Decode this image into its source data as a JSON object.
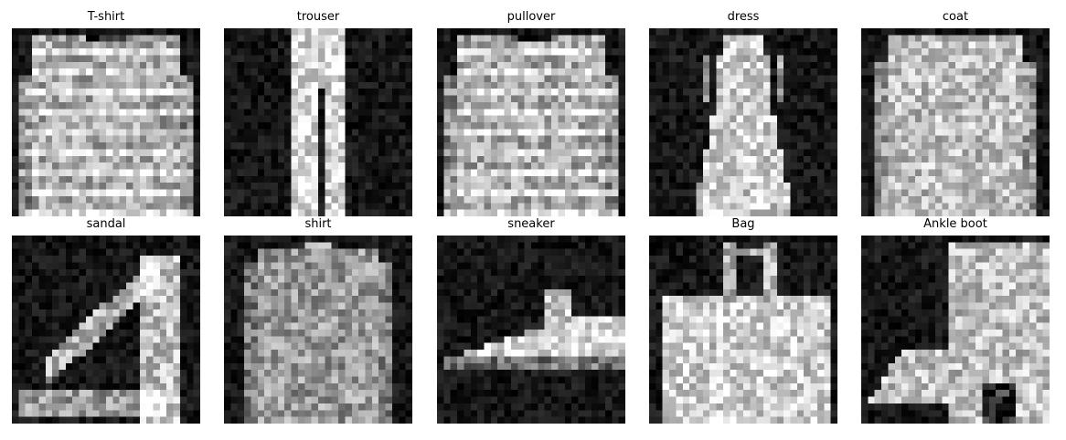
{
  "figure": {
    "panels": [
      {
        "title": "T-shirt",
        "icon": "tshirt-pixel-image",
        "kind": "pullover"
      },
      {
        "title": "trouser",
        "icon": "trouser-pixel-image",
        "kind": "trouser"
      },
      {
        "title": "pullover",
        "icon": "pullover-pixel-image",
        "kind": "pullover"
      },
      {
        "title": "dress",
        "icon": "dress-pixel-image",
        "kind": "dress"
      },
      {
        "title": "coat",
        "icon": "coat-pixel-image",
        "kind": "coat"
      },
      {
        "title": "sandal",
        "icon": "sandal-pixel-image",
        "kind": "sandal"
      },
      {
        "title": "shirt",
        "icon": "shirt-pixel-image",
        "kind": "shirt"
      },
      {
        "title": "sneaker",
        "icon": "sneaker-pixel-image",
        "kind": "sneaker"
      },
      {
        "title": "Bag",
        "icon": "bag-pixel-image",
        "kind": "bag"
      },
      {
        "title": "Ankle boot",
        "icon": "ankle-boot-pixel-image",
        "kind": "boot"
      }
    ],
    "colors": {
      "background": "#000000",
      "foreground": "#ffffff"
    }
  }
}
